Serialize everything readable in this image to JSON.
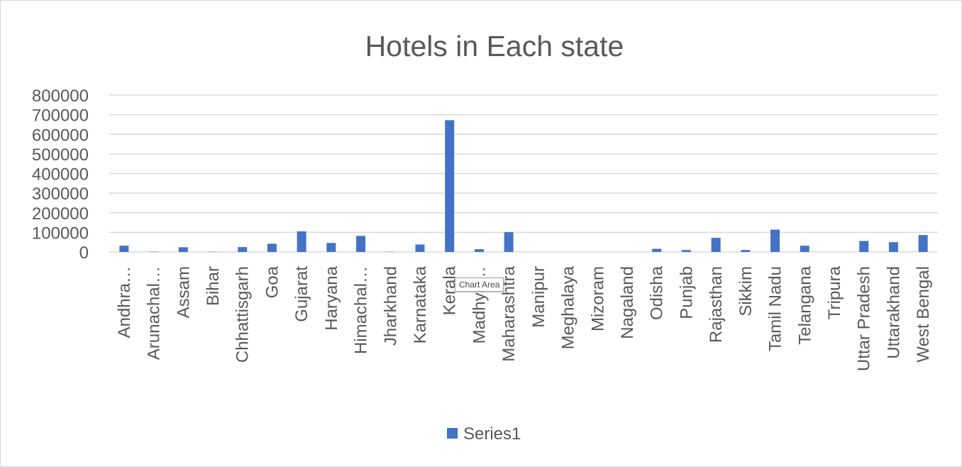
{
  "chart_data": {
    "type": "bar",
    "title": "Hotels in Each state",
    "categories": [
      "Andhra…",
      "Arunachal…",
      "Assam",
      "Bihar",
      "Chhattisgarh",
      "Goa",
      "Gujarat",
      "Haryana",
      "Himachal…",
      "Jharkhand",
      "Karnataka",
      "Kerala",
      "Madhya…",
      "Maharashtra",
      "Manipur",
      "Meghalaya",
      "Mizoram",
      "Nagaland",
      "Odisha",
      "Punjab",
      "Rajasthan",
      "Sikkim",
      "Tamil Nadu",
      "Telangana",
      "Tripura",
      "Uttar Pradesh",
      "Uttarakhand",
      "West Bengal"
    ],
    "series": [
      {
        "name": "Series1",
        "values": [
          32000,
          1500,
          24000,
          1000,
          25000,
          42000,
          105000,
          46000,
          82000,
          1000,
          38000,
          672000,
          14000,
          101000,
          0,
          0,
          0,
          0,
          16000,
          10000,
          72000,
          10000,
          114000,
          32000,
          0,
          56000,
          50000,
          86000
        ]
      }
    ],
    "yticks": [
      "0",
      "100000",
      "200000",
      "300000",
      "400000",
      "500000",
      "600000",
      "700000",
      "800000"
    ],
    "ylim": [
      0,
      800000
    ],
    "grid": true,
    "legend": "bottom",
    "colors": {
      "bar": "#4472c4",
      "grid": "#d9d9d9",
      "text": "#595959"
    }
  },
  "tooltip": {
    "text": "Chart Area"
  }
}
